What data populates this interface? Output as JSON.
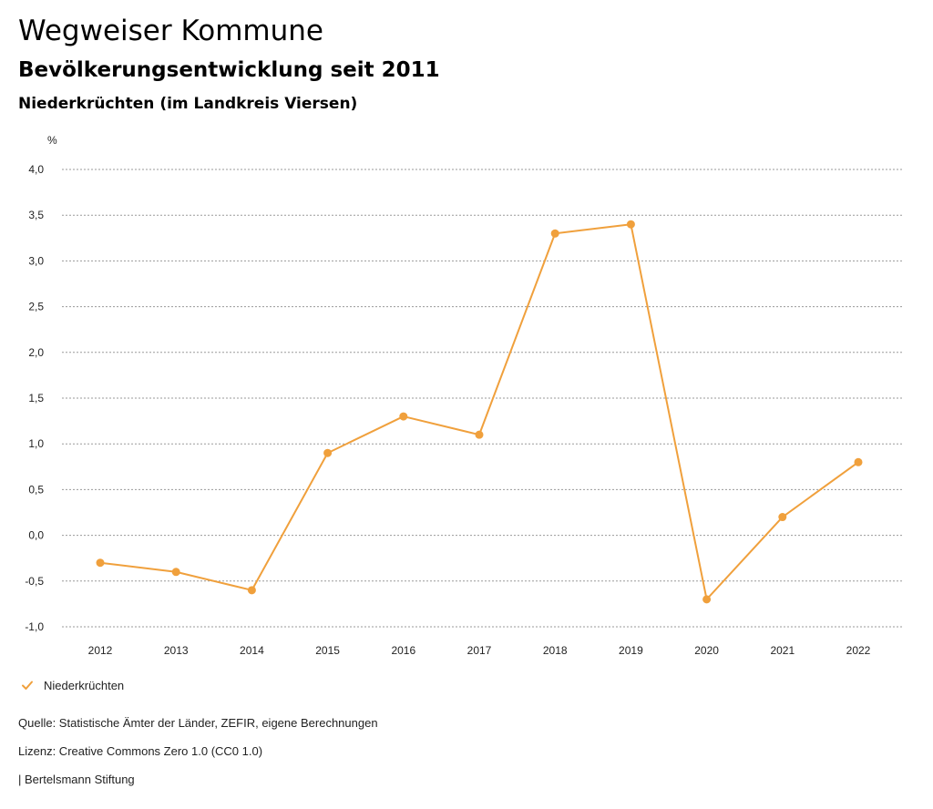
{
  "header": {
    "title": "Wegweiser Kommune",
    "subtitle": "Bevölkerungsentwicklung seit 2011",
    "region": "Niederkrüchten (im Landkreis Viersen)"
  },
  "chart_data": {
    "type": "line",
    "ylabel": "%",
    "ylim": [
      -1.0,
      4.0
    ],
    "yticks": [
      "4,0",
      "3,5",
      "3,0",
      "2,5",
      "2,0",
      "1,5",
      "1,0",
      "0,5",
      "0,0",
      "-0,5",
      "-1,0"
    ],
    "ytick_values": [
      4.0,
      3.5,
      3.0,
      2.5,
      2.0,
      1.5,
      1.0,
      0.5,
      0.0,
      -0.5,
      -1.0
    ],
    "categories": [
      "2012",
      "2013",
      "2014",
      "2015",
      "2016",
      "2017",
      "2018",
      "2019",
      "2020",
      "2021",
      "2022"
    ],
    "series": [
      {
        "name": "Niederkrüchten",
        "values": [
          -0.3,
          -0.4,
          -0.6,
          0.9,
          1.3,
          1.1,
          3.3,
          3.4,
          -0.7,
          0.2,
          0.8
        ]
      }
    ],
    "grid": true,
    "legend": "bottom-left",
    "color": "#f0a03c"
  },
  "footer": {
    "source": "Quelle: Statistische Ämter der Länder, ZEFIR, eigene Berechnungen",
    "license": "Lizenz: Creative Commons Zero 1.0 (CC0 1.0)",
    "publisher": "| Bertelsmann Stiftung"
  }
}
